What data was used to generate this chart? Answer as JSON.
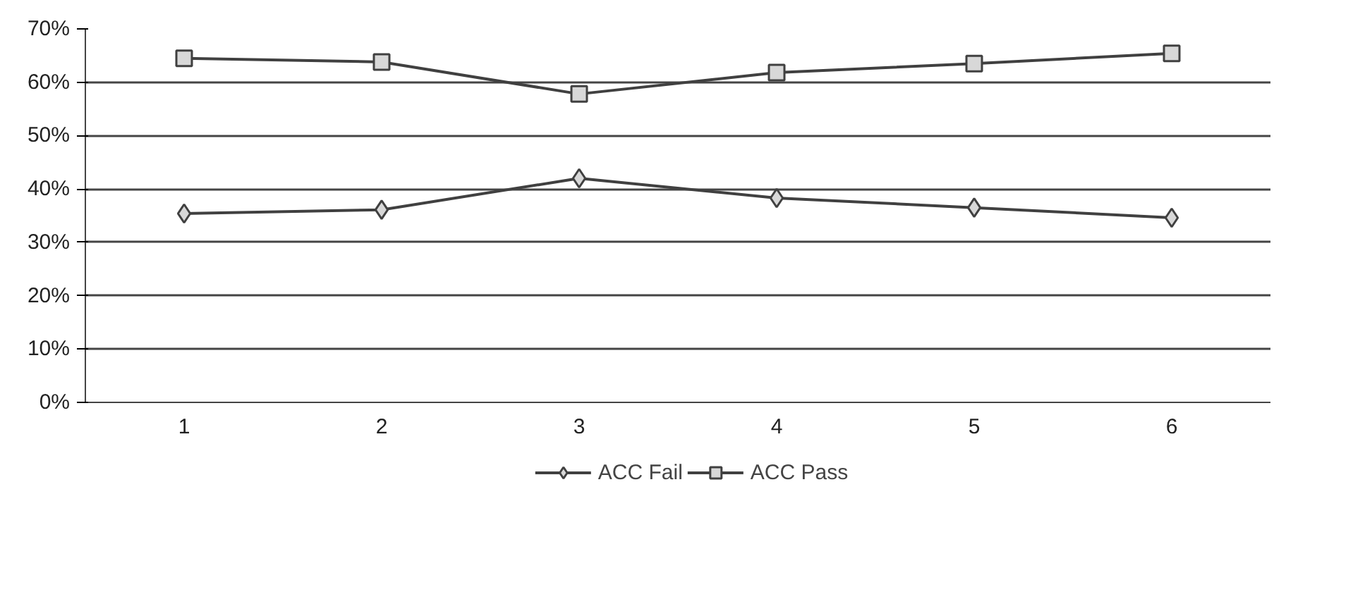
{
  "chart_data": {
    "type": "line",
    "categories": [
      "1",
      "2",
      "3",
      "4",
      "5",
      "6"
    ],
    "series": [
      {
        "name": "ACC Fail",
        "color": "#404040",
        "marker": "diamond",
        "values": [
          35.4,
          36.1,
          42.0,
          38.3,
          36.5,
          34.6
        ]
      },
      {
        "name": "ACC Pass",
        "color": "#404040",
        "marker": "square",
        "values": [
          64.5,
          63.8,
          57.8,
          61.8,
          63.5,
          65.4
        ]
      }
    ],
    "ylim": [
      0,
      70
    ],
    "yticks": [
      {
        "value": 0,
        "label": "0%"
      },
      {
        "value": 10,
        "label": "10%"
      },
      {
        "value": 20,
        "label": "20%"
      },
      {
        "value": 30,
        "label": "30%"
      },
      {
        "value": 40,
        "label": "40%"
      },
      {
        "value": 50,
        "label": "50%"
      },
      {
        "value": 60,
        "label": "60%"
      },
      {
        "value": 70,
        "label": "70%"
      }
    ],
    "grid": "y",
    "legend": "bottom"
  }
}
